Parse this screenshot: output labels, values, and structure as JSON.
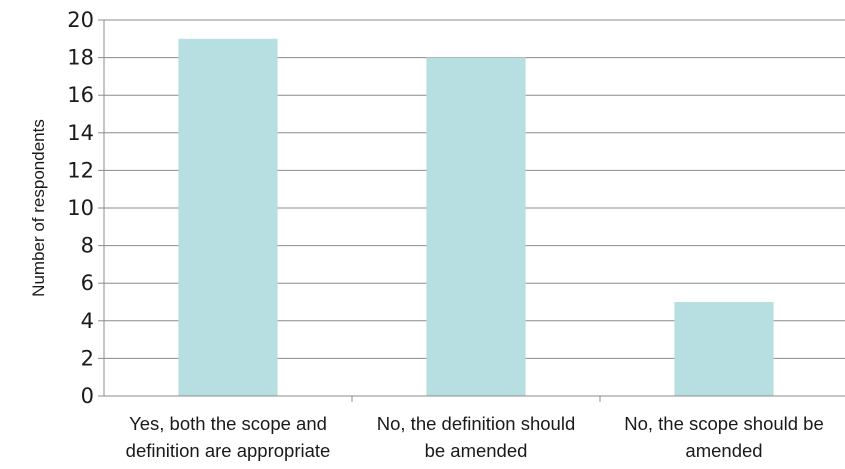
{
  "chart_data": {
    "type": "bar",
    "title": "",
    "xlabel": "",
    "ylabel": "Number of respondents",
    "categories": [
      [
        "Yes, both the scope and",
        "definition are appropriate"
      ],
      [
        "No, the definition should",
        "be amended"
      ],
      [
        "No, the scope should be",
        "amended"
      ]
    ],
    "values": [
      19,
      18,
      5
    ],
    "ylim": [
      0,
      20
    ],
    "yticks": [
      "0",
      "2",
      "4",
      "6",
      "8",
      "10",
      "12",
      "14",
      "16",
      "18",
      "20"
    ],
    "grid": true,
    "colors": {
      "bar": "#b7dfe2",
      "grid": "#8c8c8c",
      "axis": "#8c8c8c"
    }
  }
}
